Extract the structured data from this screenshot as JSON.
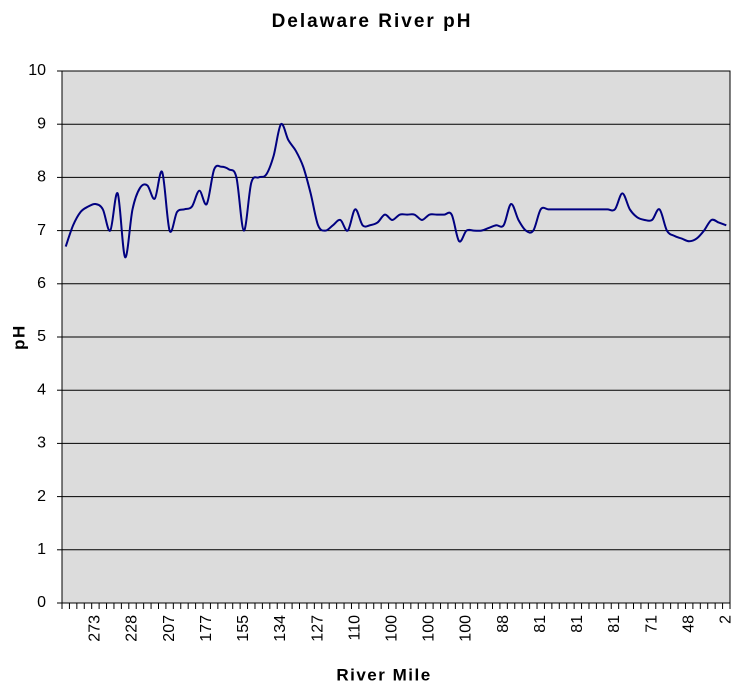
{
  "chart_data": {
    "type": "line",
    "title": "Delaware River pH",
    "x_label": "River Mile",
    "y_label": "pH",
    "categories": [
      null,
      null,
      null,
      null,
      "273",
      null,
      null,
      null,
      null,
      "228",
      null,
      null,
      null,
      null,
      "207",
      null,
      null,
      null,
      null,
      "177",
      null,
      null,
      null,
      null,
      "155",
      null,
      null,
      null,
      null,
      "134",
      null,
      null,
      null,
      null,
      "127",
      null,
      null,
      null,
      null,
      "110",
      null,
      null,
      null,
      null,
      "100",
      null,
      null,
      null,
      null,
      "100",
      null,
      null,
      null,
      null,
      "100",
      null,
      null,
      null,
      null,
      "88",
      null,
      null,
      null,
      null,
      "81",
      null,
      null,
      null,
      null,
      "81",
      null,
      null,
      null,
      null,
      "81",
      null,
      null,
      null,
      null,
      "71",
      null,
      null,
      null,
      null,
      "48",
      null,
      null,
      null,
      null,
      "2"
    ],
    "series": [
      {
        "name": "pH",
        "color": "#000080",
        "values": [
          6.7,
          7.1,
          7.35,
          7.45,
          7.5,
          7.4,
          7.0,
          7.7,
          6.5,
          7.4,
          7.8,
          7.85,
          7.6,
          8.1,
          7.0,
          7.35,
          7.4,
          7.45,
          7.75,
          7.5,
          8.15,
          8.2,
          8.15,
          8.0,
          7.0,
          7.9,
          8.0,
          8.05,
          8.4,
          9.0,
          8.7,
          8.5,
          8.2,
          7.7,
          7.1,
          7.0,
          7.1,
          7.2,
          7.0,
          7.4,
          7.1,
          7.1,
          7.15,
          7.3,
          7.2,
          7.3,
          7.3,
          7.3,
          7.2,
          7.3,
          7.3,
          7.3,
          7.3,
          6.8,
          7.0,
          7.0,
          7.0,
          7.05,
          7.1,
          7.1,
          7.5,
          7.2,
          7.0,
          7.0,
          7.4,
          7.4,
          7.4,
          7.4,
          7.4,
          7.4,
          7.4,
          7.4,
          7.4,
          7.4,
          7.4,
          7.7,
          7.4,
          7.25,
          7.2,
          7.2,
          7.4,
          7.0,
          6.9,
          6.85,
          6.8,
          6.85,
          7.0,
          7.2,
          7.15,
          7.1
        ]
      }
    ],
    "ylim": [
      0,
      10
    ],
    "yticks": [
      0,
      1,
      2,
      3,
      4,
      5,
      6,
      7,
      8,
      9,
      10
    ],
    "grid": true,
    "background": "#dcdcdc"
  }
}
